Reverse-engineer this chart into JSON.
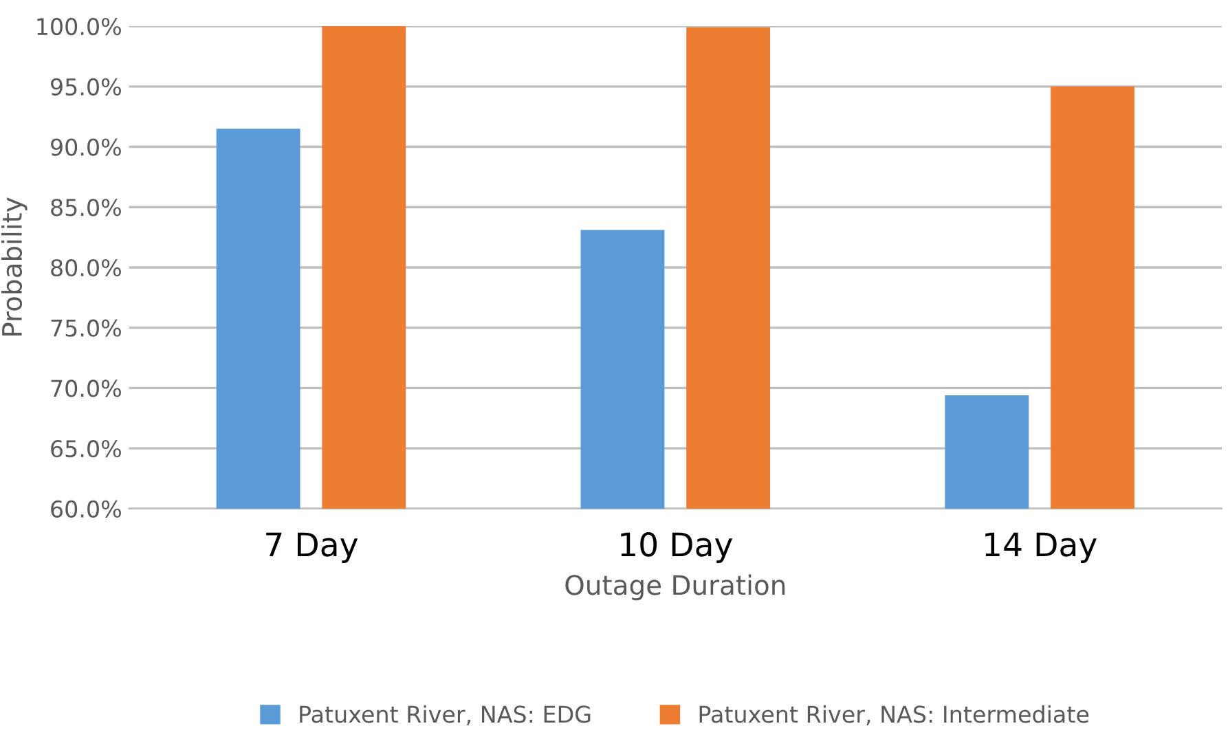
{
  "chart_data": {
    "type": "bar",
    "xlabel": "Outage Duration",
    "ylabel": "Probability",
    "categories": [
      "7 Day",
      "10 Day",
      "14 Day"
    ],
    "series": [
      {
        "name": "Patuxent River, NAS: EDG",
        "color": "#5b9bd5",
        "values": [
          91.5,
          83.1,
          69.4
        ]
      },
      {
        "name": "Patuxent River, NAS: Intermediate",
        "color": "#ed7d31",
        "values": [
          100.0,
          99.9,
          95.0
        ]
      }
    ],
    "ylim": [
      60,
      100
    ],
    "yticks": [
      {
        "value": 60,
        "label": "60.0%"
      },
      {
        "value": 65,
        "label": "65.0%"
      },
      {
        "value": 70,
        "label": "70.0%"
      },
      {
        "value": 75,
        "label": "75.0%"
      },
      {
        "value": 80,
        "label": "80.0%"
      },
      {
        "value": 85,
        "label": "85.0%"
      },
      {
        "value": 90,
        "label": "90.0%"
      },
      {
        "value": 95,
        "label": "95.0%"
      },
      {
        "value": 100,
        "label": "100.0%"
      }
    ],
    "grid": "y",
    "legend": "bottom"
  }
}
